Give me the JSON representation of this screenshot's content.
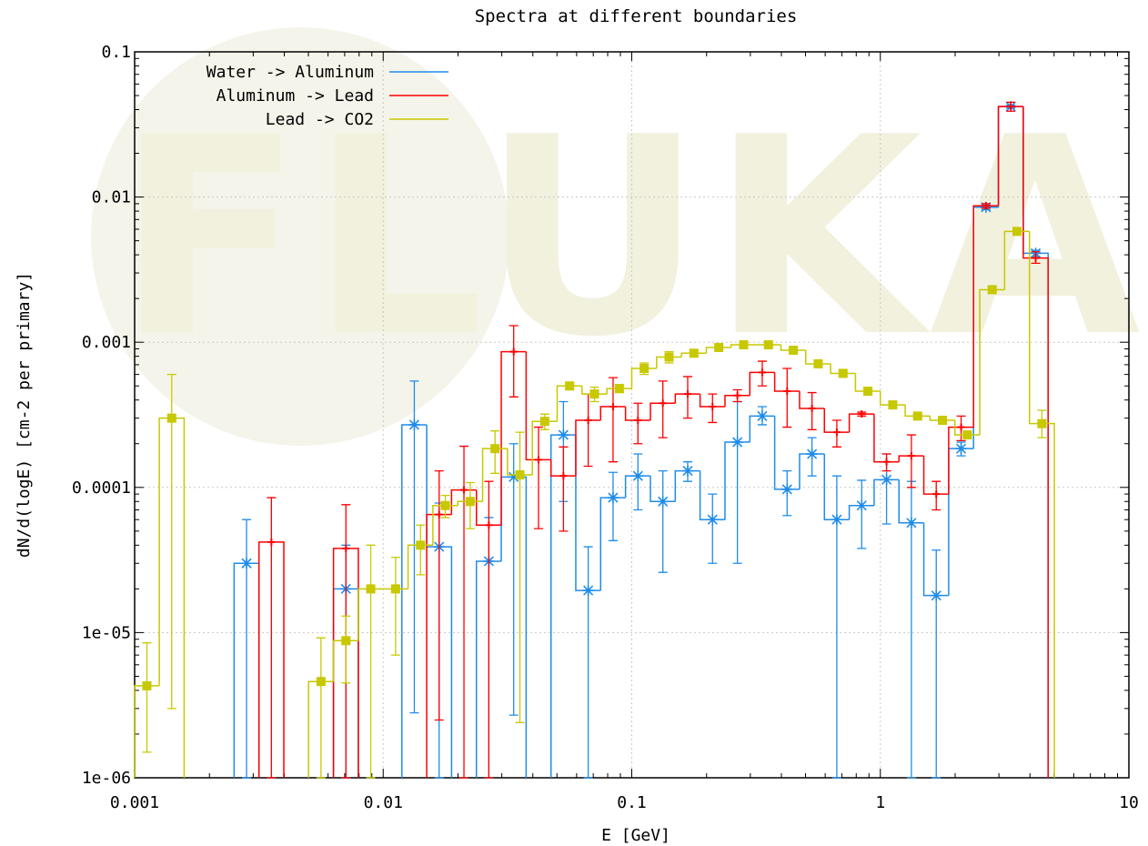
{
  "chart_data": {
    "type": "line",
    "title": "Spectra at different boundaries",
    "xlabel": "E [GeV]",
    "ylabel": "dN/d(logE) [cm-2 per primary]",
    "x_scale": "log",
    "y_scale": "log",
    "xlim": [
      0.001,
      10
    ],
    "ylim": [
      1e-06,
      0.1
    ],
    "grid": true,
    "legend_position": "top-left",
    "watermark": "FLUKA",
    "x_ticks": [
      "0.001",
      "0.01",
      "0.1",
      "1",
      "10"
    ],
    "y_ticks": [
      "1e-06",
      "1e-05",
      "0.0001",
      "0.001",
      "0.01",
      "0.1"
    ],
    "series": [
      {
        "name": "Water -> Aluminum",
        "color": "#1e8ceb",
        "points": [
          {
            "x": 0.00282,
            "y": 3e-05,
            "lo": 1e-06,
            "hi": 6e-05
          },
          {
            "x": 0.00708,
            "y": 2e-05,
            "lo": 1e-06,
            "hi": 4e-05
          },
          {
            "x": 0.01334,
            "y": 0.00027,
            "lo": 2.8e-06,
            "hi": 0.00054
          },
          {
            "x": 0.01679,
            "y": 3.9e-05,
            "lo": 1e-06,
            "hi": 7.8e-05
          },
          {
            "x": 0.02661,
            "y": 3.1e-05,
            "lo": 1e-06,
            "hi": 6.2e-05
          },
          {
            "x": 0.0335,
            "y": 0.000118,
            "lo": 2.7e-06,
            "hi": 0.0002
          },
          {
            "x": 0.0531,
            "y": 0.00023,
            "lo": 8e-05,
            "hi": 0.00039
          },
          {
            "x": 0.0668,
            "y": 1.95e-05,
            "lo": 1e-06,
            "hi": 3.9e-05
          },
          {
            "x": 0.0841,
            "y": 8.5e-05,
            "lo": 4.3e-05,
            "hi": 0.000127
          },
          {
            "x": 0.1059,
            "y": 0.00012,
            "lo": 7e-05,
            "hi": 0.00017
          },
          {
            "x": 0.1334,
            "y": 8e-05,
            "lo": 2.6e-05,
            "hi": 0.00013
          },
          {
            "x": 0.1679,
            "y": 0.00013,
            "lo": 0.00011,
            "hi": 0.00015
          },
          {
            "x": 0.2113,
            "y": 6e-05,
            "lo": 3e-05,
            "hi": 9e-05
          },
          {
            "x": 0.2661,
            "y": 0.000205,
            "lo": 3e-05,
            "hi": 0.00039
          },
          {
            "x": 0.335,
            "y": 0.00031,
            "lo": 0.00027,
            "hi": 0.00036
          },
          {
            "x": 0.4217,
            "y": 9.7e-05,
            "lo": 6.4e-05,
            "hi": 0.00013
          },
          {
            "x": 0.531,
            "y": 0.00017,
            "lo": 0.00012,
            "hi": 0.00022
          },
          {
            "x": 0.6683,
            "y": 6e-05,
            "lo": 1e-06,
            "hi": 0.00012
          },
          {
            "x": 0.8414,
            "y": 7.5e-05,
            "lo": 3.8e-05,
            "hi": 0.000112
          },
          {
            "x": 1.0593,
            "y": 0.000113,
            "lo": 5.6e-05,
            "hi": 0.00017
          },
          {
            "x": 1.3335,
            "y": 5.7e-05,
            "lo": 1e-06,
            "hi": 0.00011
          },
          {
            "x": 1.6788,
            "y": 1.8e-05,
            "lo": 1e-06,
            "hi": 3.7e-05
          },
          {
            "x": 2.1135,
            "y": 0.000185,
            "lo": 0.000165,
            "hi": 0.000205
          },
          {
            "x": 2.6607,
            "y": 0.0085,
            "lo": 0.0082,
            "hi": 0.0088
          },
          {
            "x": 3.3496,
            "y": 0.042,
            "lo": 0.041,
            "hi": 0.043
          },
          {
            "x": 4.217,
            "y": 0.0041,
            "lo": 0.0039,
            "hi": 0.0043
          }
        ]
      },
      {
        "name": "Aluminum -> Lead",
        "color": "#ff0000",
        "points": [
          {
            "x": 0.00355,
            "y": 4.2e-05,
            "lo": 1e-06,
            "hi": 8.5e-05
          },
          {
            "x": 0.00708,
            "y": 3.8e-05,
            "lo": 1e-06,
            "hi": 7.6e-05
          },
          {
            "x": 0.01679,
            "y": 6.5e-05,
            "lo": 2.5e-06,
            "hi": 0.00013
          },
          {
            "x": 0.02113,
            "y": 9.6e-05,
            "lo": 1e-06,
            "hi": 0.000192
          },
          {
            "x": 0.02661,
            "y": 5.5e-05,
            "lo": 1e-06,
            "hi": 0.00011
          },
          {
            "x": 0.0335,
            "y": 0.00086,
            "lo": 0.00042,
            "hi": 0.0013
          },
          {
            "x": 0.04217,
            "y": 0.000155,
            "lo": 5.2e-05,
            "hi": 0.00026
          },
          {
            "x": 0.0531,
            "y": 0.00012,
            "lo": 5e-05,
            "hi": 0.00019
          },
          {
            "x": 0.0668,
            "y": 0.00029,
            "lo": 0.00014,
            "hi": 0.00044
          },
          {
            "x": 0.0841,
            "y": 0.00036,
            "lo": 0.00015,
            "hi": 0.00057
          },
          {
            "x": 0.1059,
            "y": 0.00029,
            "lo": 0.0002,
            "hi": 0.00038
          },
          {
            "x": 0.1334,
            "y": 0.00038,
            "lo": 0.00022,
            "hi": 0.00054
          },
          {
            "x": 0.1679,
            "y": 0.00044,
            "lo": 0.0003,
            "hi": 0.00058
          },
          {
            "x": 0.2113,
            "y": 0.00036,
            "lo": 0.00028,
            "hi": 0.00044
          },
          {
            "x": 0.2661,
            "y": 0.00043,
            "lo": 0.00039,
            "hi": 0.00047
          },
          {
            "x": 0.335,
            "y": 0.00062,
            "lo": 0.0005,
            "hi": 0.00074
          },
          {
            "x": 0.4217,
            "y": 0.00046,
            "lo": 0.00026,
            "hi": 0.00066
          },
          {
            "x": 0.531,
            "y": 0.00035,
            "lo": 0.00025,
            "hi": 0.00045
          },
          {
            "x": 0.6683,
            "y": 0.00024,
            "lo": 0.00019,
            "hi": 0.00029
          },
          {
            "x": 0.8414,
            "y": 0.00032,
            "lo": 0.00031,
            "hi": 0.00033
          },
          {
            "x": 1.0593,
            "y": 0.00015,
            "lo": 0.00013,
            "hi": 0.00017
          },
          {
            "x": 1.3335,
            "y": 0.000165,
            "lo": 0.0001,
            "hi": 0.00023
          },
          {
            "x": 1.6788,
            "y": 9e-05,
            "lo": 7e-05,
            "hi": 0.00011
          },
          {
            "x": 2.1135,
            "y": 0.00026,
            "lo": 0.00021,
            "hi": 0.00031
          },
          {
            "x": 2.6607,
            "y": 0.0087,
            "lo": 0.0084,
            "hi": 0.009
          },
          {
            "x": 3.3496,
            "y": 0.042,
            "lo": 0.039,
            "hi": 0.045
          },
          {
            "x": 4.217,
            "y": 0.0038,
            "lo": 0.0035,
            "hi": 0.0042
          }
        ]
      },
      {
        "name": "Lead -> CO2",
        "color": "#c8c800",
        "points": [
          {
            "x": 0.00112,
            "y": 4.3e-06,
            "lo": 1.5e-06,
            "hi": 8.5e-06
          },
          {
            "x": 0.00141,
            "y": 0.0003,
            "lo": 3e-06,
            "hi": 0.0006
          },
          {
            "x": 0.00562,
            "y": 4.6e-06,
            "lo": 1e-06,
            "hi": 9.2e-06
          },
          {
            "x": 0.00708,
            "y": 8.8e-06,
            "lo": 4.5e-06,
            "hi": 1.3e-05
          },
          {
            "x": 0.00891,
            "y": 2e-05,
            "lo": 1e-06,
            "hi": 4e-05
          },
          {
            "x": 0.01122,
            "y": 2e-05,
            "lo": 7e-06,
            "hi": 3.3e-05
          },
          {
            "x": 0.01413,
            "y": 4e-05,
            "lo": 2.5e-05,
            "hi": 5.5e-05
          },
          {
            "x": 0.01778,
            "y": 7.5e-05,
            "lo": 6.2e-05,
            "hi": 8.8e-05
          },
          {
            "x": 0.02239,
            "y": 8e-05,
            "lo": 5.2e-05,
            "hi": 0.000108
          },
          {
            "x": 0.02818,
            "y": 0.000185,
            "lo": 0.000125,
            "hi": 0.000245
          },
          {
            "x": 0.03548,
            "y": 0.000122,
            "lo": 2.4e-06,
            "hi": 0.00024
          },
          {
            "x": 0.04467,
            "y": 0.000285,
            "lo": 0.00025,
            "hi": 0.00032
          },
          {
            "x": 0.05623,
            "y": 0.0005,
            "lo": 0.00047,
            "hi": 0.00053
          },
          {
            "x": 0.07079,
            "y": 0.00044,
            "lo": 0.00039,
            "hi": 0.00049
          },
          {
            "x": 0.08913,
            "y": 0.00048,
            "lo": 0.00045,
            "hi": 0.00051
          },
          {
            "x": 0.1122,
            "y": 0.00066,
            "lo": 0.0006,
            "hi": 0.00072
          },
          {
            "x": 0.1413,
            "y": 0.00079,
            "lo": 0.00072,
            "hi": 0.00086
          },
          {
            "x": 0.1778,
            "y": 0.00084,
            "lo": 0.0008,
            "hi": 0.00088
          },
          {
            "x": 0.2239,
            "y": 0.00092,
            "lo": 0.00089,
            "hi": 0.00095
          },
          {
            "x": 0.2818,
            "y": 0.00096,
            "lo": 0.00093,
            "hi": 0.00099
          },
          {
            "x": 0.3548,
            "y": 0.00096,
            "lo": 0.00093,
            "hi": 0.00099
          },
          {
            "x": 0.4467,
            "y": 0.00088,
            "lo": 0.00085,
            "hi": 0.00091
          },
          {
            "x": 0.5623,
            "y": 0.00071,
            "lo": 0.00068,
            "hi": 0.00074
          },
          {
            "x": 0.7079,
            "y": 0.00061,
            "lo": 0.00058,
            "hi": 0.00064
          },
          {
            "x": 0.8913,
            "y": 0.00046,
            "lo": 0.00044,
            "hi": 0.00048
          },
          {
            "x": 1.122,
            "y": 0.00037,
            "lo": 0.00035,
            "hi": 0.00039
          },
          {
            "x": 1.4125,
            "y": 0.00031,
            "lo": 0.0003,
            "hi": 0.00032
          },
          {
            "x": 1.7783,
            "y": 0.00029,
            "lo": 0.00028,
            "hi": 0.0003
          },
          {
            "x": 2.2387,
            "y": 0.00023,
            "lo": 0.00022,
            "hi": 0.00024
          },
          {
            "x": 2.8184,
            "y": 0.0023,
            "lo": 0.0022,
            "hi": 0.0024
          },
          {
            "x": 3.5481,
            "y": 0.0058,
            "lo": 0.0056,
            "hi": 0.006
          },
          {
            "x": 4.4668,
            "y": 0.000275,
            "lo": 0.00022,
            "hi": 0.00034
          }
        ]
      }
    ]
  }
}
